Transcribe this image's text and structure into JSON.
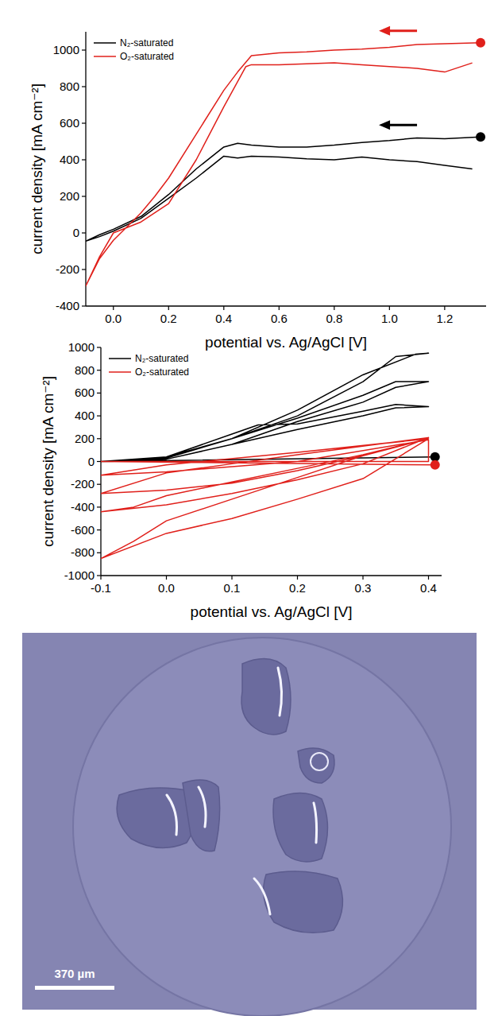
{
  "chart_data": [
    {
      "type": "line",
      "x_label": "potential vs. Ag/AgCl [V]",
      "y_label": "current density [mA cm⁻²]",
      "xlim": [
        -0.1,
        1.35
      ],
      "xticks": [
        {
          "value": 0,
          "label": "0.0"
        },
        0.2,
        0.4,
        0.6,
        0.8,
        {
          "value": 1,
          "label": "1.0"
        },
        1.2
      ],
      "ylim": [
        -400,
        1100
      ],
      "yticks": [
        -400,
        -200,
        0,
        200,
        400,
        600,
        800,
        1000
      ],
      "legend": "top-left",
      "grid": false,
      "series": [
        {
          "name": "N₂-saturated",
          "color": "#000000",
          "x": [
            1.33,
            1.2,
            1.1,
            1.0,
            0.9,
            0.8,
            0.7,
            0.6,
            0.5,
            0.45,
            0.4,
            0.3,
            0.2,
            0.1,
            0.0,
            -0.05,
            -0.1,
            -0.05,
            0.0,
            0.1,
            0.2,
            0.3,
            0.4,
            0.45,
            0.5,
            0.6,
            0.7,
            0.8,
            0.9,
            1.0,
            1.1,
            1.2,
            1.3
          ],
          "values": [
            525,
            515,
            520,
            505,
            495,
            480,
            470,
            470,
            480,
            490,
            470,
            350,
            210,
            90,
            20,
            -10,
            -45,
            -20,
            10,
            80,
            190,
            300,
            420,
            410,
            420,
            415,
            405,
            400,
            415,
            400,
            390,
            370,
            350
          ]
        },
        {
          "name": "O₂-saturated",
          "color": "#e0201b",
          "x": [
            1.33,
            1.2,
            1.1,
            1.0,
            0.9,
            0.8,
            0.7,
            0.6,
            0.5,
            0.45,
            0.4,
            0.3,
            0.2,
            0.15,
            0.1,
            0.0,
            -0.05,
            -0.1,
            -0.05,
            0.0,
            0.1,
            0.2,
            0.3,
            0.4,
            0.48,
            0.5,
            0.6,
            0.7,
            0.8,
            0.9,
            1.0,
            1.1,
            1.2,
            1.3
          ],
          "values": [
            1040,
            1035,
            1030,
            1015,
            1005,
            1000,
            990,
            985,
            970,
            880,
            780,
            540,
            300,
            200,
            110,
            -40,
            -140,
            -290,
            -130,
            0,
            60,
            160,
            400,
            690,
            910,
            920,
            920,
            925,
            930,
            920,
            910,
            900,
            880,
            930
          ]
        }
      ]
    },
    {
      "type": "line",
      "x_label": "potential vs. Ag/AgCl [V]",
      "y_label": "current density [mA cm⁻²]",
      "xlim": [
        -0.1,
        0.42
      ],
      "xticks": [
        -0.1,
        {
          "value": 0,
          "label": "0.0"
        },
        0.1,
        0.2,
        0.3,
        0.4
      ],
      "ylim": [
        -1000,
        1000
      ],
      "yticks": [
        -1000,
        -800,
        -600,
        -400,
        -200,
        0,
        200,
        400,
        600,
        800,
        1000
      ],
      "legend": "top-left",
      "grid": false,
      "series": [
        {
          "name": "N₂-saturated",
          "color": "#000000",
          "x": [
            0.41,
            -0.1,
            0.0,
            0.1,
            0.14,
            0.2,
            0.3,
            0.35,
            0.4,
            0.35,
            0.3,
            0.2,
            0.1,
            0.0,
            -0.1,
            0.0,
            0.1,
            0.2,
            0.3,
            0.35,
            0.4,
            0.35,
            0.3,
            0.2,
            0.1,
            0.0,
            -0.1,
            0.0,
            0.1,
            0.2,
            0.3,
            0.35,
            0.4,
            0.38,
            0.3,
            0.2,
            0.1,
            0.0,
            -0.1
          ],
          "values": [
            40,
            0,
            40,
            240,
            320,
            330,
            440,
            500,
            480,
            470,
            400,
            280,
            150,
            20,
            0,
            40,
            200,
            380,
            580,
            700,
            700,
            650,
            520,
            350,
            150,
            20,
            0,
            40,
            200,
            400,
            700,
            920,
            950,
            940,
            760,
            450,
            200,
            30,
            0
          ]
        },
        {
          "name": "O₂-saturated",
          "color": "#e0201b",
          "x": [
            0.41,
            -0.1,
            0.4,
            0.4,
            0.2,
            0.0,
            -0.1,
            0.0,
            0.2,
            0.4,
            0.3,
            0.2,
            0.1,
            0.0,
            -0.1,
            0.0,
            0.1,
            0.2,
            0.4,
            0.3,
            0.2,
            0.1,
            0.0,
            -0.1,
            -0.05,
            0.0,
            0.1,
            0.2,
            0.3,
            0.4,
            0.3,
            0.2,
            0.1,
            0.0,
            -0.1,
            -0.05,
            0.0,
            0.1,
            0.2,
            0.3,
            0.4
          ],
          "values": [
            -30,
            0,
            0,
            190,
            0,
            -90,
            -120,
            -30,
            80,
            200,
            50,
            -80,
            -190,
            -250,
            -280,
            -100,
            -20,
            60,
            210,
            -20,
            -160,
            -280,
            -380,
            -440,
            -400,
            -300,
            -180,
            -60,
            60,
            200,
            -150,
            -330,
            -500,
            -630,
            -850,
            -700,
            -520,
            -330,
            -140,
            50,
            200
          ]
        }
      ]
    }
  ],
  "image": {
    "scale_bar": "370 µm"
  }
}
